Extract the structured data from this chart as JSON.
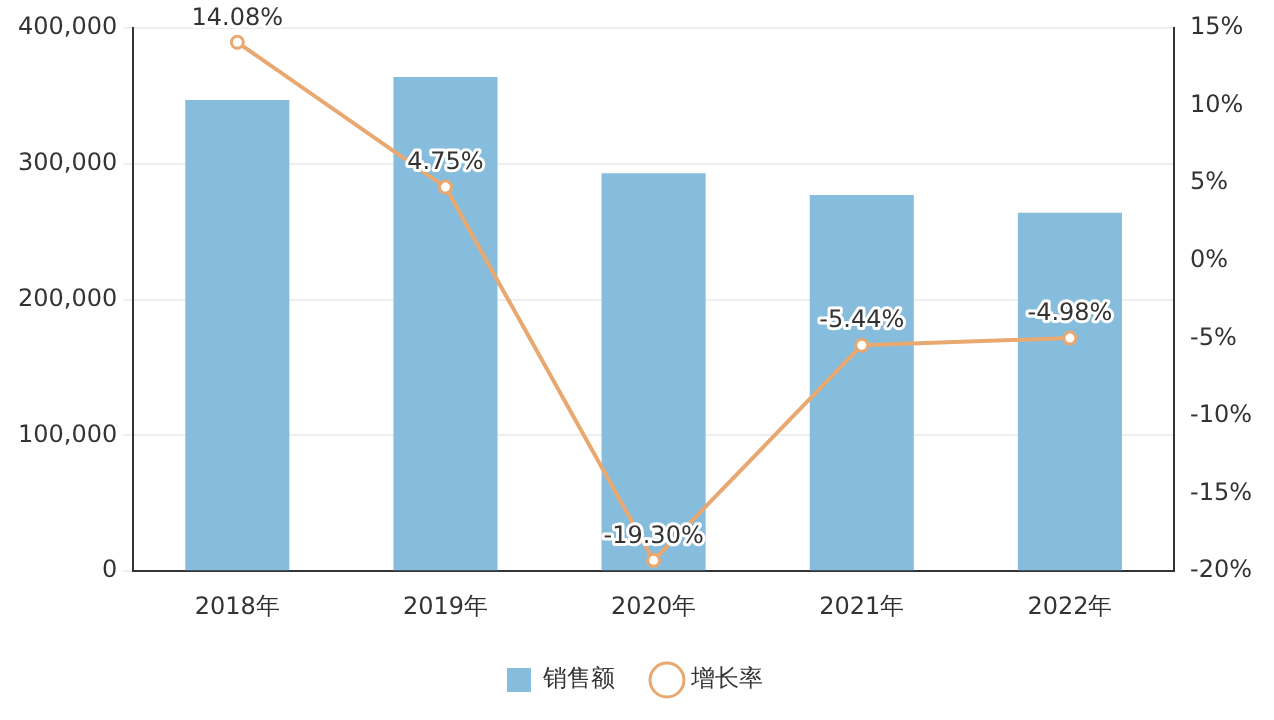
{
  "chart_data": {
    "type": "bar",
    "categories": [
      "2018年",
      "2019年",
      "2020年",
      "2021年",
      "2022年"
    ],
    "series": [
      {
        "name": "销售额",
        "color": "#87bddc",
        "values": [
          347000,
          364000,
          293000,
          277000,
          264000
        ]
      },
      {
        "name": "增长率",
        "type": "line",
        "axis": "y2",
        "color": "#e8a870",
        "values": [
          14.08,
          4.75,
          -19.3,
          -5.44,
          -4.98
        ],
        "value_labels": [
          "14.08%",
          "4.75%",
          "-19.30%",
          "-5.44%",
          "-4.98%"
        ]
      }
    ],
    "ylim": [
      0,
      400000
    ],
    "yticks": [
      {
        "value": 0,
        "label": "0"
      },
      {
        "value": 100000,
        "label": "100,000"
      },
      {
        "value": 200000,
        "label": "200,000"
      },
      {
        "value": 300000,
        "label": "300,000"
      },
      {
        "value": 400000,
        "label": "400,000"
      }
    ],
    "y2lim": [
      -20,
      15
    ],
    "y2ticks": [
      {
        "value": -20,
        "label": "-20%"
      },
      {
        "value": -15,
        "label": "-15%"
      },
      {
        "value": -10,
        "label": "-10%"
      },
      {
        "value": -5,
        "label": "-5%"
      },
      {
        "value": 0,
        "label": "0%"
      },
      {
        "value": 5,
        "label": "5%"
      },
      {
        "value": 10,
        "label": "10%"
      },
      {
        "value": 15,
        "label": "15%"
      }
    ],
    "grid": "y",
    "legend": "bottom",
    "marker": "circle"
  }
}
